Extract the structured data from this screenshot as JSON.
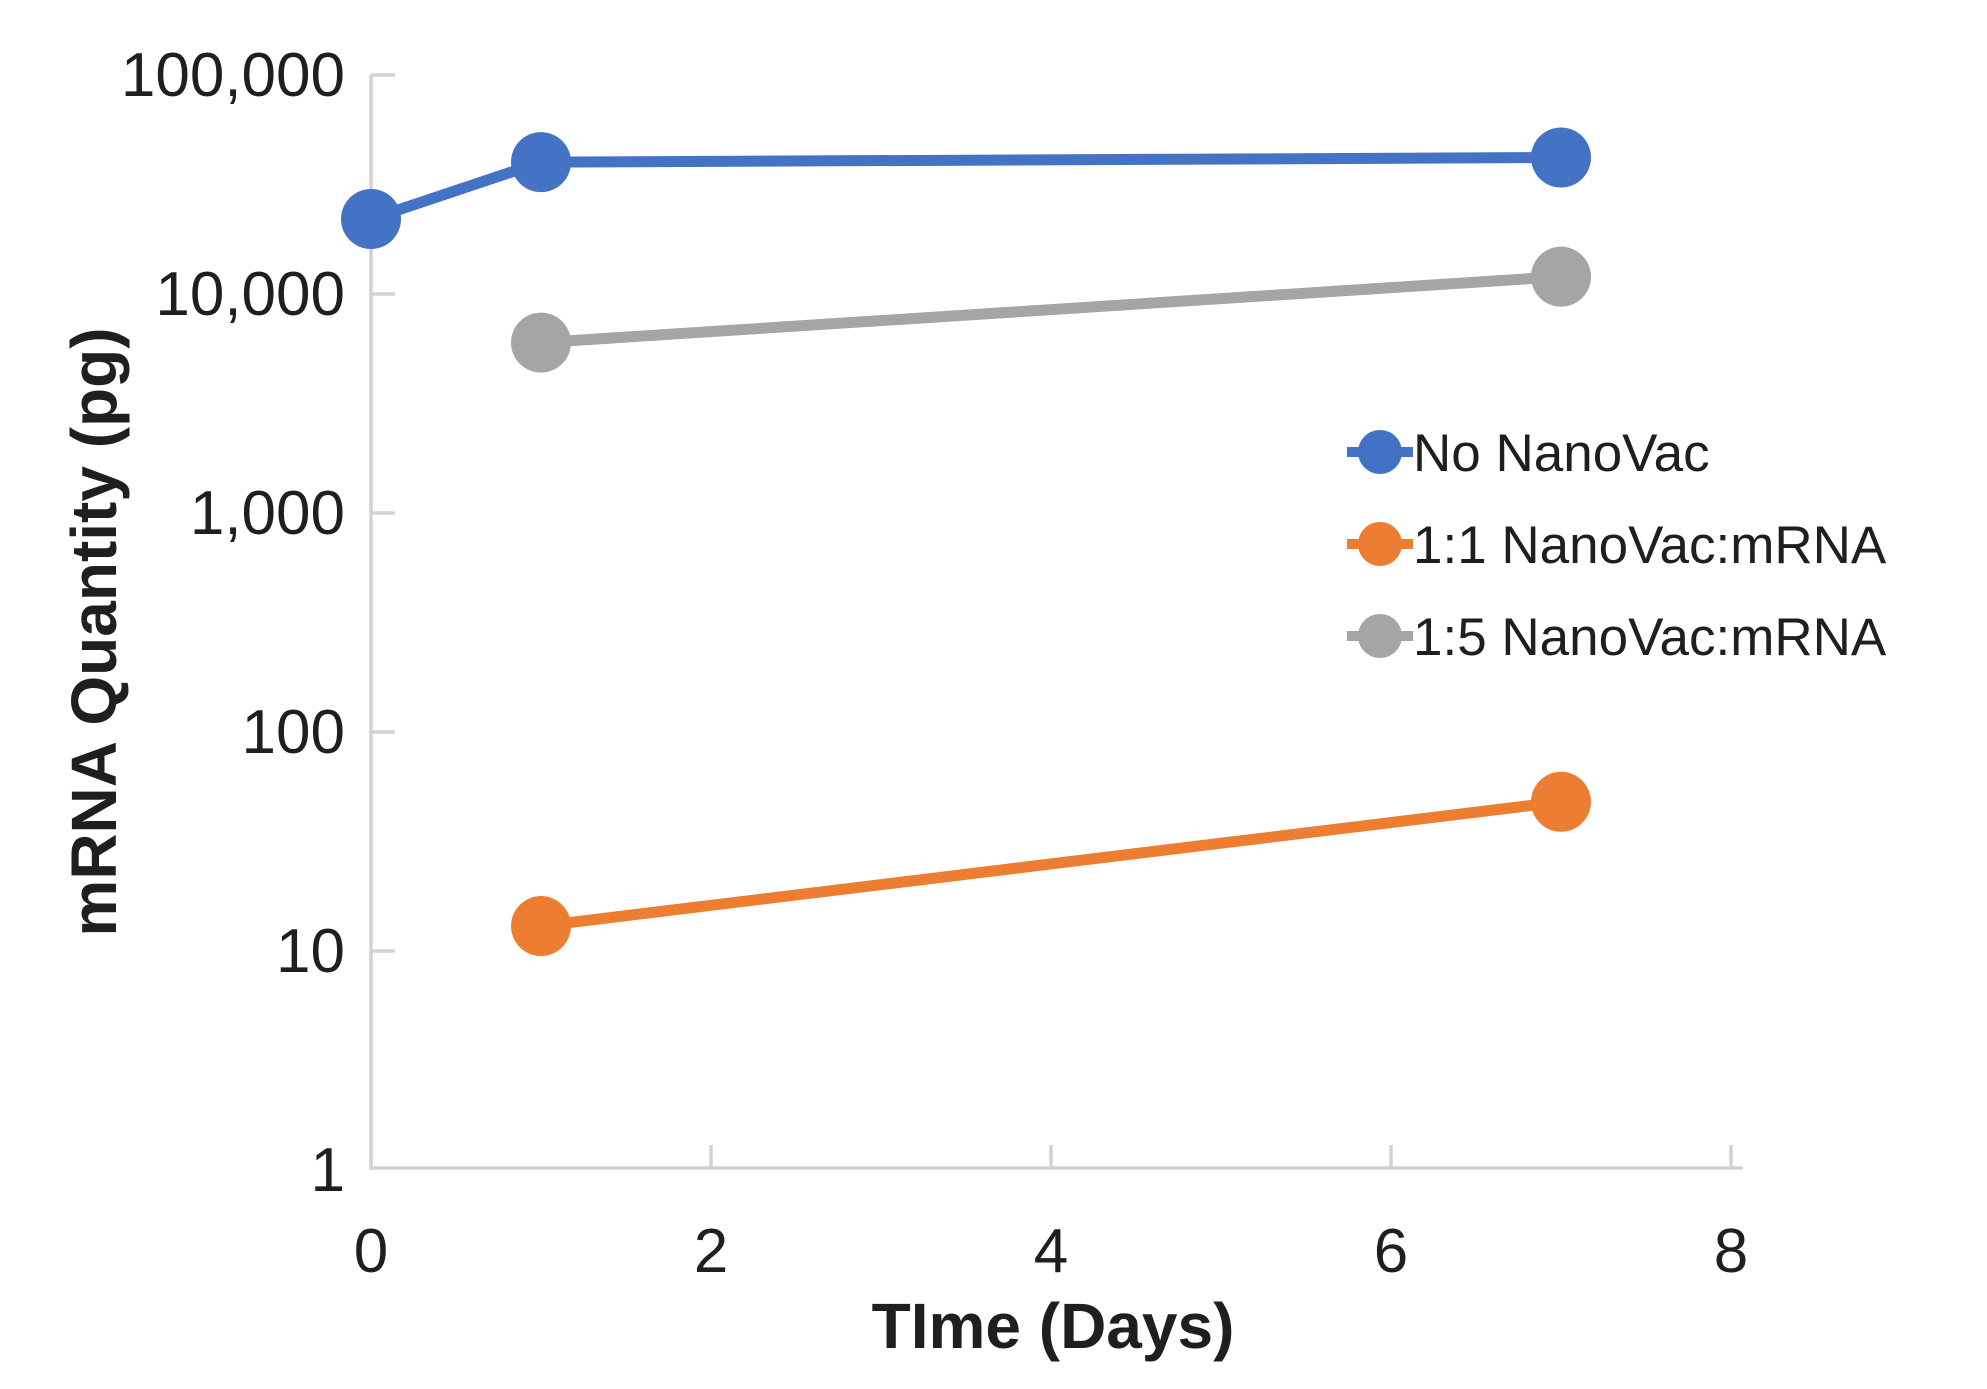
{
  "chart_data": {
    "type": "line",
    "title": "",
    "xlabel": "TIme (Days)",
    "ylabel": "mRNA Quantity (pg)",
    "x_scale": "linear",
    "y_scale": "log",
    "xlim": [
      0,
      8
    ],
    "ylim": [
      1,
      100000
    ],
    "x_ticks": [
      0,
      2,
      4,
      6,
      8
    ],
    "y_ticks": [
      {
        "value": 1,
        "label": "1"
      },
      {
        "value": 10,
        "label": "10"
      },
      {
        "value": 100,
        "label": "100"
      },
      {
        "value": 1000,
        "label": "1,000"
      },
      {
        "value": 10000,
        "label": "10,000"
      },
      {
        "value": 100000,
        "label": "100,000"
      }
    ],
    "grid": false,
    "legend_position": "right-center",
    "marker_style": "filled-circle",
    "series": [
      {
        "name": "No NanoVac",
        "color": "#4472C4",
        "points": [
          {
            "x": 0,
            "y": 22000
          },
          {
            "x": 1,
            "y": 40000
          },
          {
            "x": 7,
            "y": 42000
          }
        ]
      },
      {
        "name": "1:1 NanoVac:mRNA",
        "color": "#ED7D31",
        "points": [
          {
            "x": 1,
            "y": 13
          },
          {
            "x": 7,
            "y": 48
          }
        ]
      },
      {
        "name": "1:5 NanoVac:mRNA",
        "color": "#A5A5A5",
        "points": [
          {
            "x": 1,
            "y": 6000
          },
          {
            "x": 7,
            "y": 12000
          }
        ]
      }
    ],
    "text_color": "#1F1F1F",
    "axis_color": "#D2D2D2",
    "background": "#FFFFFF"
  }
}
